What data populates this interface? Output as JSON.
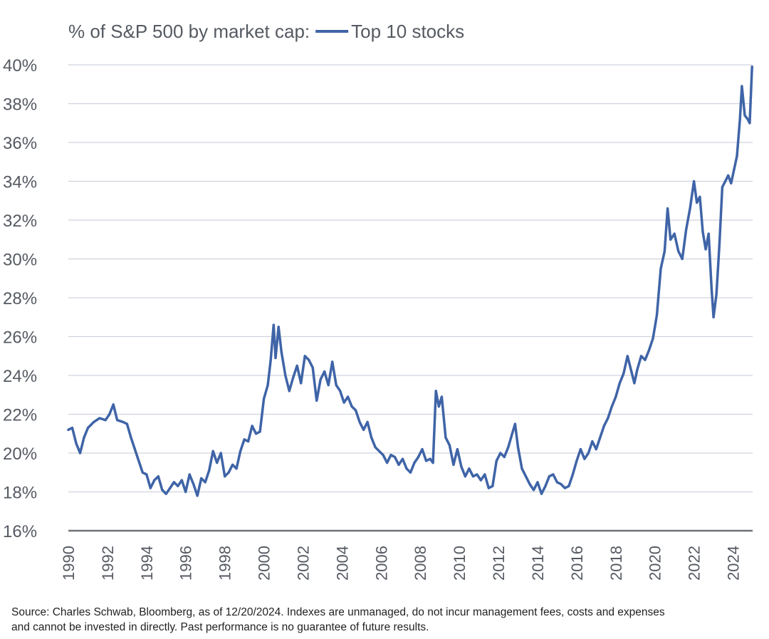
{
  "chart_data": {
    "type": "line",
    "title": "% of S&P 500 by market cap:",
    "legend": {
      "placement": "top",
      "entries": [
        {
          "label": "Top 10 stocks",
          "color": "#3f64a7"
        }
      ]
    },
    "source": {
      "line1": "Source: Charles Schwab, Bloomberg, as of 12/20/2024. Indexes are unmanaged, do not incur management fees, costs and expenses",
      "line2": "and cannot be invested in directly. Past performance is no guarantee of future results."
    },
    "xlabel": "",
    "ylabel": "",
    "xlim": [
      1990,
      2025
    ],
    "ylim": [
      16,
      40
    ],
    "yticks": [
      16,
      18,
      20,
      22,
      24,
      26,
      28,
      30,
      32,
      34,
      36,
      38,
      40
    ],
    "ytick_labels": [
      "16%",
      "18%",
      "20%",
      "22%",
      "24%",
      "26%",
      "28%",
      "30%",
      "32%",
      "34%",
      "36%",
      "38%",
      "40%"
    ],
    "xticks": [
      1990,
      1992,
      1994,
      1996,
      1998,
      2000,
      2002,
      2004,
      2006,
      2008,
      2010,
      2012,
      2014,
      2016,
      2018,
      2020,
      2022,
      2024
    ],
    "xtick_labels": [
      "1990",
      "1992",
      "1994",
      "1996",
      "1998",
      "2000",
      "2002",
      "2004",
      "2006",
      "2008",
      "2010",
      "2012",
      "2014",
      "2016",
      "2018",
      "2020",
      "2022",
      "2024"
    ],
    "grid": {
      "horizontal": true,
      "vertical": false
    },
    "series": [
      {
        "name": "Top 10 stocks",
        "color": "#3f64a7",
        "points": [
          [
            1990.0,
            21.2
          ],
          [
            1990.2,
            21.3
          ],
          [
            1990.4,
            20.5
          ],
          [
            1990.6,
            20.0
          ],
          [
            1990.8,
            20.8
          ],
          [
            1991.0,
            21.3
          ],
          [
            1991.3,
            21.6
          ],
          [
            1991.6,
            21.8
          ],
          [
            1991.9,
            21.7
          ],
          [
            1992.1,
            22.0
          ],
          [
            1992.3,
            22.5
          ],
          [
            1992.5,
            21.7
          ],
          [
            1992.8,
            21.6
          ],
          [
            1993.0,
            21.5
          ],
          [
            1993.2,
            20.8
          ],
          [
            1993.4,
            20.2
          ],
          [
            1993.6,
            19.6
          ],
          [
            1993.8,
            19.0
          ],
          [
            1994.0,
            18.9
          ],
          [
            1994.2,
            18.2
          ],
          [
            1994.4,
            18.6
          ],
          [
            1994.6,
            18.8
          ],
          [
            1994.8,
            18.1
          ],
          [
            1995.0,
            17.9
          ],
          [
            1995.2,
            18.2
          ],
          [
            1995.4,
            18.5
          ],
          [
            1995.6,
            18.3
          ],
          [
            1995.8,
            18.6
          ],
          [
            1996.0,
            18.0
          ],
          [
            1996.2,
            18.9
          ],
          [
            1996.4,
            18.4
          ],
          [
            1996.6,
            17.8
          ],
          [
            1996.8,
            18.7
          ],
          [
            1997.0,
            18.5
          ],
          [
            1997.2,
            19.1
          ],
          [
            1997.4,
            20.1
          ],
          [
            1997.6,
            19.5
          ],
          [
            1997.8,
            20.0
          ],
          [
            1998.0,
            18.8
          ],
          [
            1998.2,
            19.0
          ],
          [
            1998.4,
            19.4
          ],
          [
            1998.6,
            19.2
          ],
          [
            1998.8,
            20.1
          ],
          [
            1999.0,
            20.7
          ],
          [
            1999.2,
            20.6
          ],
          [
            1999.4,
            21.4
          ],
          [
            1999.6,
            21.0
          ],
          [
            1999.8,
            21.1
          ],
          [
            2000.0,
            22.8
          ],
          [
            2000.2,
            23.5
          ],
          [
            2000.35,
            24.8
          ],
          [
            2000.5,
            26.6
          ],
          [
            2000.6,
            24.9
          ],
          [
            2000.75,
            26.5
          ],
          [
            2000.9,
            25.2
          ],
          [
            2001.1,
            24.0
          ],
          [
            2001.3,
            23.2
          ],
          [
            2001.5,
            23.9
          ],
          [
            2001.7,
            24.5
          ],
          [
            2001.9,
            23.6
          ],
          [
            2002.1,
            25.0
          ],
          [
            2002.3,
            24.8
          ],
          [
            2002.5,
            24.4
          ],
          [
            2002.7,
            22.7
          ],
          [
            2002.9,
            23.8
          ],
          [
            2003.1,
            24.2
          ],
          [
            2003.3,
            23.5
          ],
          [
            2003.5,
            24.7
          ],
          [
            2003.7,
            23.5
          ],
          [
            2003.9,
            23.2
          ],
          [
            2004.1,
            22.6
          ],
          [
            2004.3,
            22.9
          ],
          [
            2004.5,
            22.4
          ],
          [
            2004.7,
            22.2
          ],
          [
            2004.9,
            21.6
          ],
          [
            2005.1,
            21.2
          ],
          [
            2005.3,
            21.6
          ],
          [
            2005.5,
            20.8
          ],
          [
            2005.7,
            20.3
          ],
          [
            2005.9,
            20.1
          ],
          [
            2006.1,
            19.9
          ],
          [
            2006.3,
            19.5
          ],
          [
            2006.5,
            19.9
          ],
          [
            2006.7,
            19.8
          ],
          [
            2006.9,
            19.4
          ],
          [
            2007.1,
            19.7
          ],
          [
            2007.3,
            19.2
          ],
          [
            2007.5,
            19.0
          ],
          [
            2007.7,
            19.5
          ],
          [
            2007.9,
            19.8
          ],
          [
            2008.1,
            20.2
          ],
          [
            2008.3,
            19.6
          ],
          [
            2008.5,
            19.7
          ],
          [
            2008.65,
            19.5
          ],
          [
            2008.8,
            23.2
          ],
          [
            2008.95,
            22.4
          ],
          [
            2009.1,
            22.9
          ],
          [
            2009.3,
            20.8
          ],
          [
            2009.5,
            20.4
          ],
          [
            2009.7,
            19.4
          ],
          [
            2009.9,
            20.2
          ],
          [
            2010.1,
            19.3
          ],
          [
            2010.3,
            18.8
          ],
          [
            2010.5,
            19.2
          ],
          [
            2010.7,
            18.8
          ],
          [
            2010.9,
            18.9
          ],
          [
            2011.1,
            18.6
          ],
          [
            2011.3,
            18.9
          ],
          [
            2011.5,
            18.2
          ],
          [
            2011.7,
            18.3
          ],
          [
            2011.9,
            19.6
          ],
          [
            2012.1,
            20.0
          ],
          [
            2012.3,
            19.8
          ],
          [
            2012.5,
            20.3
          ],
          [
            2012.7,
            21.0
          ],
          [
            2012.85,
            21.5
          ],
          [
            2013.0,
            20.3
          ],
          [
            2013.2,
            19.2
          ],
          [
            2013.4,
            18.8
          ],
          [
            2013.6,
            18.4
          ],
          [
            2013.8,
            18.1
          ],
          [
            2014.0,
            18.5
          ],
          [
            2014.2,
            17.9
          ],
          [
            2014.4,
            18.3
          ],
          [
            2014.6,
            18.8
          ],
          [
            2014.8,
            18.9
          ],
          [
            2015.0,
            18.5
          ],
          [
            2015.2,
            18.4
          ],
          [
            2015.4,
            18.2
          ],
          [
            2015.6,
            18.3
          ],
          [
            2015.8,
            18.9
          ],
          [
            2016.0,
            19.6
          ],
          [
            2016.2,
            20.2
          ],
          [
            2016.4,
            19.7
          ],
          [
            2016.6,
            20.0
          ],
          [
            2016.8,
            20.6
          ],
          [
            2017.0,
            20.2
          ],
          [
            2017.2,
            20.8
          ],
          [
            2017.4,
            21.4
          ],
          [
            2017.6,
            21.8
          ],
          [
            2017.8,
            22.4
          ],
          [
            2018.0,
            22.9
          ],
          [
            2018.2,
            23.6
          ],
          [
            2018.4,
            24.1
          ],
          [
            2018.6,
            25.0
          ],
          [
            2018.8,
            24.2
          ],
          [
            2018.95,
            23.6
          ],
          [
            2019.1,
            24.3
          ],
          [
            2019.3,
            25.0
          ],
          [
            2019.5,
            24.8
          ],
          [
            2019.7,
            25.3
          ],
          [
            2019.9,
            25.9
          ],
          [
            2020.1,
            27.1
          ],
          [
            2020.3,
            29.5
          ],
          [
            2020.5,
            30.4
          ],
          [
            2020.65,
            32.6
          ],
          [
            2020.8,
            31.0
          ],
          [
            2021.0,
            31.3
          ],
          [
            2021.2,
            30.4
          ],
          [
            2021.4,
            30.0
          ],
          [
            2021.6,
            31.5
          ],
          [
            2021.8,
            32.6
          ],
          [
            2022.0,
            34.0
          ],
          [
            2022.15,
            32.9
          ],
          [
            2022.3,
            33.2
          ],
          [
            2022.45,
            31.4
          ],
          [
            2022.6,
            30.5
          ],
          [
            2022.75,
            31.3
          ],
          [
            2022.9,
            28.5
          ],
          [
            2023.0,
            27.0
          ],
          [
            2023.15,
            28.2
          ],
          [
            2023.3,
            30.7
          ],
          [
            2023.45,
            33.7
          ],
          [
            2023.6,
            34.0
          ],
          [
            2023.75,
            34.3
          ],
          [
            2023.9,
            33.9
          ],
          [
            2024.05,
            34.6
          ],
          [
            2024.2,
            35.3
          ],
          [
            2024.35,
            37.2
          ],
          [
            2024.45,
            38.9
          ],
          [
            2024.6,
            37.4
          ],
          [
            2024.75,
            37.2
          ],
          [
            2024.85,
            37.0
          ],
          [
            2024.97,
            39.9
          ]
        ]
      }
    ]
  }
}
